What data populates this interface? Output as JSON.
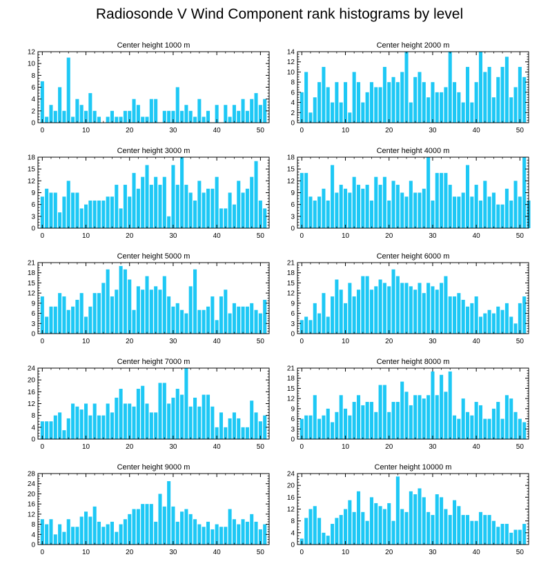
{
  "title": "Radiosonde V Wind Component rank histograms by level",
  "bar_color": "#1ec8f5",
  "chart_data": [
    {
      "type": "bar",
      "title": "Center height 1000 m",
      "xlim": [
        -1,
        52
      ],
      "ylim": [
        0,
        12
      ],
      "xticks": [
        0,
        10,
        20,
        30,
        40,
        50
      ],
      "yticks": [
        0,
        2,
        4,
        6,
        8,
        10,
        12
      ],
      "values": [
        7,
        1,
        3,
        2,
        6,
        2,
        11,
        1,
        4,
        3,
        2,
        5,
        2,
        1,
        0,
        1,
        2,
        1,
        1,
        2,
        2,
        4,
        3,
        1,
        1,
        4,
        4,
        0,
        2,
        2,
        2,
        6,
        2,
        3,
        2,
        1,
        4,
        1,
        2,
        0,
        3,
        0,
        3,
        1,
        3,
        2,
        4,
        2,
        4,
        5,
        3,
        4
      ]
    },
    {
      "type": "bar",
      "title": "Center height 2000 m",
      "xlim": [
        -1,
        52
      ],
      "ylim": [
        0,
        14
      ],
      "xticks": [
        0,
        10,
        20,
        30,
        40,
        50
      ],
      "yticks": [
        0,
        2,
        4,
        6,
        8,
        10,
        12,
        14
      ],
      "values": [
        6,
        10,
        2,
        5,
        8,
        11,
        7,
        4,
        8,
        4,
        8,
        2,
        10,
        8,
        4,
        6,
        8,
        7,
        7,
        11,
        8,
        9,
        8,
        10,
        14,
        4,
        9,
        10,
        8,
        5,
        8,
        6,
        6,
        7,
        14,
        8,
        6,
        4,
        11,
        4,
        8,
        14,
        10,
        11,
        5,
        9,
        11,
        13,
        5,
        7,
        11,
        9
      ]
    },
    {
      "type": "bar",
      "title": "Center height 3000 m",
      "xlim": [
        -1,
        52
      ],
      "ylim": [
        0,
        18
      ],
      "xticks": [
        0,
        10,
        20,
        30,
        40,
        50
      ],
      "yticks": [
        0,
        3,
        6,
        9,
        12,
        15,
        18
      ],
      "values": [
        8,
        10,
        9,
        9,
        4,
        8,
        12,
        9,
        9,
        5,
        6,
        7,
        7,
        7,
        7,
        8,
        8,
        11,
        5,
        11,
        8,
        14,
        10,
        13,
        16,
        11,
        13,
        11,
        13,
        3,
        16,
        11,
        18,
        11,
        9,
        7,
        12,
        9,
        10,
        10,
        13,
        5,
        5,
        9,
        6,
        12,
        9,
        10,
        13,
        17,
        7,
        5
      ]
    },
    {
      "type": "bar",
      "title": "Center height 4000 m",
      "xlim": [
        -1,
        52
      ],
      "ylim": [
        0,
        18
      ],
      "xticks": [
        0,
        10,
        20,
        30,
        40,
        50
      ],
      "yticks": [
        0,
        3,
        6,
        9,
        12,
        15,
        18
      ],
      "values": [
        14,
        14,
        8,
        7,
        8,
        10,
        7,
        16,
        9,
        11,
        10,
        9,
        13,
        11,
        10,
        11,
        7,
        13,
        11,
        13,
        7,
        12,
        11,
        9,
        8,
        12,
        9,
        9,
        10,
        18,
        7,
        14,
        14,
        14,
        11,
        8,
        8,
        9,
        16,
        8,
        11,
        7,
        12,
        8,
        9,
        6,
        6,
        10,
        7,
        12,
        8,
        18,
        7
      ]
    },
    {
      "type": "bar",
      "title": "Center height 5000 m",
      "xlim": [
        -1,
        52
      ],
      "ylim": [
        0,
        21
      ],
      "xticks": [
        0,
        10,
        20,
        30,
        40,
        50
      ],
      "yticks": [
        0,
        3,
        6,
        9,
        12,
        15,
        18,
        21
      ],
      "values": [
        11,
        5,
        8,
        8,
        12,
        11,
        7,
        8,
        10,
        12,
        5,
        8,
        12,
        12,
        15,
        19,
        11,
        13,
        20,
        19,
        16,
        7,
        14,
        13,
        17,
        13,
        14,
        13,
        17,
        11,
        8,
        9,
        7,
        6,
        14,
        19,
        7,
        7,
        8,
        11,
        4,
        11,
        13,
        6,
        9,
        8,
        8,
        8,
        9,
        7,
        6,
        10
      ]
    },
    {
      "type": "bar",
      "title": "Center height 6000 m",
      "xlim": [
        -1,
        52
      ],
      "ylim": [
        0,
        21
      ],
      "xticks": [
        0,
        10,
        20,
        30,
        40,
        50
      ],
      "yticks": [
        0,
        3,
        6,
        9,
        12,
        15,
        18,
        21
      ],
      "values": [
        4,
        5,
        4,
        9,
        6,
        12,
        5,
        11,
        16,
        13,
        9,
        15,
        11,
        13,
        17,
        17,
        13,
        14,
        16,
        15,
        14,
        19,
        17,
        15,
        15,
        14,
        13,
        15,
        12,
        15,
        14,
        13,
        15,
        17,
        11,
        11,
        12,
        10,
        8,
        9,
        11,
        5,
        6,
        7,
        6,
        8,
        7,
        9,
        5,
        3,
        9,
        11
      ]
    },
    {
      "type": "bar",
      "title": "Center height 7000 m",
      "xlim": [
        -1,
        52
      ],
      "ylim": [
        0,
        24
      ],
      "xticks": [
        0,
        10,
        20,
        30,
        40,
        50
      ],
      "yticks": [
        0,
        4,
        8,
        12,
        16,
        20,
        24
      ],
      "values": [
        6,
        6,
        6,
        8,
        9,
        3,
        7,
        12,
        11,
        10,
        12,
        8,
        12,
        8,
        8,
        12,
        9,
        14,
        17,
        12,
        12,
        11,
        17,
        18,
        12,
        9,
        9,
        19,
        19,
        12,
        14,
        17,
        15,
        24,
        11,
        14,
        11,
        15,
        15,
        11,
        4,
        9,
        4,
        7,
        9,
        7,
        4,
        4,
        13,
        9,
        6,
        8
      ]
    },
    {
      "type": "bar",
      "title": "Center height 8000 m",
      "xlim": [
        -1,
        52
      ],
      "ylim": [
        0,
        21
      ],
      "xticks": [
        0,
        10,
        20,
        30,
        40,
        50
      ],
      "yticks": [
        0,
        3,
        6,
        9,
        12,
        15,
        18,
        21
      ],
      "values": [
        6,
        7,
        7,
        13,
        6,
        7,
        9,
        5,
        8,
        13,
        9,
        7,
        11,
        13,
        10,
        11,
        11,
        8,
        16,
        16,
        8,
        11,
        11,
        17,
        14,
        10,
        13,
        13,
        12,
        13,
        20,
        13,
        19,
        14,
        20,
        7,
        6,
        12,
        8,
        7,
        11,
        10,
        6,
        6,
        9,
        11,
        6,
        13,
        12,
        8,
        6,
        5
      ]
    },
    {
      "type": "bar",
      "title": "Center height 9000 m",
      "xlim": [
        -1,
        52
      ],
      "ylim": [
        0,
        28
      ],
      "xticks": [
        0,
        10,
        20,
        30,
        40,
        50
      ],
      "yticks": [
        0,
        4,
        8,
        12,
        16,
        20,
        24,
        28
      ],
      "values": [
        10,
        8,
        10,
        4,
        8,
        5,
        10,
        7,
        7,
        11,
        13,
        11,
        15,
        9,
        7,
        8,
        9,
        5,
        8,
        10,
        12,
        14,
        14,
        16,
        16,
        16,
        9,
        20,
        15,
        25,
        15,
        9,
        13,
        14,
        12,
        10,
        8,
        7,
        9,
        6,
        8,
        7,
        7,
        14,
        10,
        8,
        10,
        9,
        12,
        9,
        6,
        8
      ]
    },
    {
      "type": "bar",
      "title": "Center height 10000 m",
      "xlim": [
        -1,
        52
      ],
      "ylim": [
        0,
        24
      ],
      "xticks": [
        0,
        10,
        20,
        30,
        40,
        50
      ],
      "yticks": [
        0,
        4,
        8,
        12,
        16,
        20,
        24
      ],
      "values": [
        2,
        9,
        12,
        13,
        9,
        4,
        3,
        7,
        9,
        10,
        12,
        15,
        11,
        18,
        11,
        8,
        16,
        14,
        13,
        12,
        14,
        8,
        23,
        12,
        11,
        18,
        17,
        19,
        16,
        11,
        10,
        17,
        16,
        12,
        10,
        15,
        13,
        10,
        10,
        8,
        8,
        11,
        10,
        10,
        8,
        6,
        7,
        7,
        4,
        5,
        5,
        7
      ]
    }
  ]
}
